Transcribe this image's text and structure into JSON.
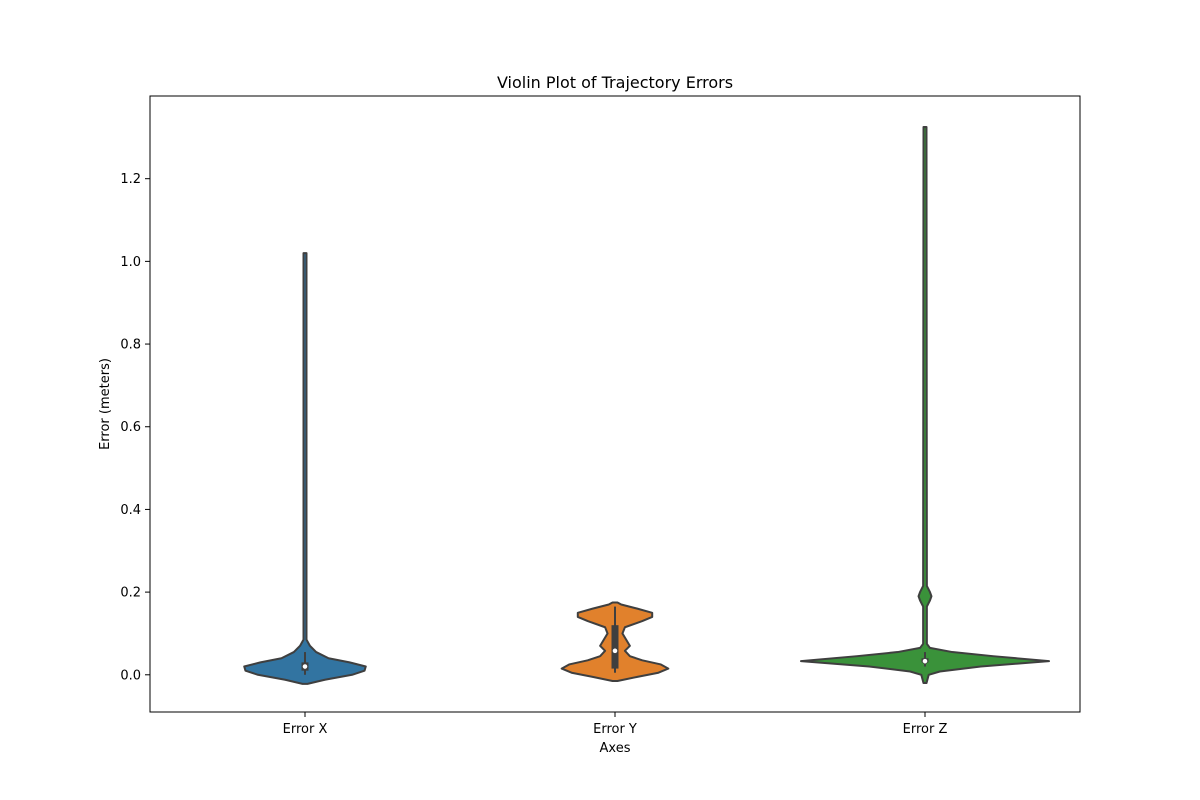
{
  "chart_data": {
    "type": "violin",
    "title": "Violin Plot of Trajectory Errors",
    "xlabel": "Axes",
    "ylabel": "Error (meters)",
    "ylim": [
      -0.09,
      1.4
    ],
    "yticks": [
      "0.0",
      "0.2",
      "0.4",
      "0.6",
      "0.8",
      "1.0",
      "1.2"
    ],
    "categories": [
      "Error X",
      "Error Y",
      "Error Z"
    ],
    "series": [
      {
        "category": "Error X",
        "color": "#3274a1",
        "range": [
          -0.022,
          1.02
        ],
        "q1": 0.01,
        "median": 0.02,
        "q3": 0.03,
        "whisker": [
          0.0,
          0.055
        ],
        "density": [
          [
            -0.022,
            0.02
          ],
          [
            -0.012,
            0.16
          ],
          [
            0.0,
            0.38
          ],
          [
            0.01,
            0.48
          ],
          [
            0.02,
            0.49
          ],
          [
            0.03,
            0.36
          ],
          [
            0.04,
            0.19
          ],
          [
            0.055,
            0.09
          ],
          [
            0.07,
            0.04
          ],
          [
            0.085,
            0.012
          ],
          [
            0.12,
            0.012
          ],
          [
            1.02,
            0.012
          ]
        ]
      },
      {
        "category": "Error Y",
        "color": "#e1812c",
        "range": [
          -0.015,
          0.175
        ],
        "q1": 0.015,
        "median": 0.058,
        "q3": 0.12,
        "whisker": [
          0.005,
          0.165
        ],
        "density": [
          [
            -0.015,
            0.02
          ],
          [
            -0.005,
            0.18
          ],
          [
            0.005,
            0.35
          ],
          [
            0.015,
            0.43
          ],
          [
            0.025,
            0.37
          ],
          [
            0.035,
            0.22
          ],
          [
            0.045,
            0.12
          ],
          [
            0.058,
            0.08
          ],
          [
            0.07,
            0.12
          ],
          [
            0.085,
            0.09
          ],
          [
            0.1,
            0.06
          ],
          [
            0.115,
            0.08
          ],
          [
            0.13,
            0.22
          ],
          [
            0.14,
            0.3
          ],
          [
            0.15,
            0.3
          ],
          [
            0.16,
            0.18
          ],
          [
            0.17,
            0.05
          ],
          [
            0.175,
            0.02
          ]
        ]
      },
      {
        "category": "Error Z",
        "color": "#3a923a",
        "range": [
          -0.02,
          1.325
        ],
        "q1": 0.03,
        "median": 0.033,
        "q3": 0.04,
        "whisker": [
          0.02,
          0.055
        ],
        "density": [
          [
            -0.02,
            0.012
          ],
          [
            0.0,
            0.03
          ],
          [
            0.008,
            0.12
          ],
          [
            0.02,
            0.45
          ],
          [
            0.033,
            1.0
          ],
          [
            0.045,
            0.55
          ],
          [
            0.055,
            0.22
          ],
          [
            0.065,
            0.04
          ],
          [
            0.075,
            0.015
          ],
          [
            0.165,
            0.015
          ],
          [
            0.18,
            0.04
          ],
          [
            0.19,
            0.052
          ],
          [
            0.2,
            0.04
          ],
          [
            0.215,
            0.015
          ],
          [
            1.325,
            0.012
          ]
        ]
      }
    ],
    "grid": false,
    "legend": "none"
  }
}
